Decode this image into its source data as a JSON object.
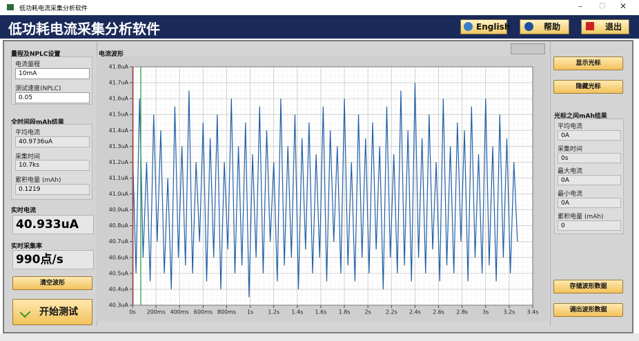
{
  "window": {
    "title": "低功耗电流采集分析软件"
  },
  "header": {
    "title": "低功耗电流采集分析软件",
    "english": "English",
    "help": "帮助",
    "exit": "退出"
  },
  "left": {
    "range_section": "量程及NPLC设置",
    "range_label": "电流量程",
    "range_value": "10mA",
    "nplc_label": "测试速度(NPLC)",
    "nplc_value": "0.05",
    "total_section": "全时间段mAh结果",
    "avg_label": "平均电流",
    "avg_value": "40.9736uA",
    "time_label": "采集时间",
    "time_value": "10.7ks",
    "charge_label": "累积电量 (mAh)",
    "charge_value": "0.1219",
    "realtime_label": "实时电流",
    "realtime_value": "40.933uA",
    "rate_label": "实时采集率",
    "rate_value": "990点/s",
    "clear_button": "清空波形",
    "start_button": "开始测试"
  },
  "right": {
    "show_cursor": "显示光标",
    "hide_cursor": "隐藏光标",
    "section": "光标之间mAh结果",
    "avg_label": "平均电流",
    "avg_value": "0A",
    "time_label": "采集时间",
    "time_value": "0s",
    "max_label": "最大电流",
    "max_value": "0A",
    "min_label": "最小电流",
    "min_value": "0A",
    "charge_label": "累积电量 (mAh)",
    "charge_value": "0",
    "save_button": "存储波形数据",
    "load_button": "调出波形数据"
  },
  "chart_data": {
    "type": "line",
    "title": "电流波形",
    "color": "#1f5fa6",
    "grid": true,
    "xlim": [
      0,
      3.4
    ],
    "ylim": [
      40.3,
      41.8
    ],
    "xticks": [
      {
        "value": 0,
        "label": "0s"
      },
      {
        "value": 0.2,
        "label": "200ms"
      },
      {
        "value": 0.4,
        "label": "400ms"
      },
      {
        "value": 0.6,
        "label": "600ms"
      },
      {
        "value": 0.8,
        "label": "800ms"
      },
      {
        "value": 1,
        "label": "1s"
      },
      {
        "value": 1.2,
        "label": "1.2s"
      },
      {
        "value": 1.4,
        "label": "1.4s"
      },
      {
        "value": 1.6,
        "label": "1.6s"
      },
      {
        "value": 1.8,
        "label": "1.8s"
      },
      {
        "value": 2,
        "label": "2s"
      },
      {
        "value": 2.2,
        "label": "2.2s"
      },
      {
        "value": 2.4,
        "label": "2.4s"
      },
      {
        "value": 2.6,
        "label": "2.6s"
      },
      {
        "value": 2.8,
        "label": "2.8s"
      },
      {
        "value": 3,
        "label": "3s"
      },
      {
        "value": 3.2,
        "label": "3.2s"
      },
      {
        "value": 3.4,
        "label": "3.4s"
      }
    ],
    "yticks": [
      {
        "value": 40.3,
        "label": "40.3uA"
      },
      {
        "value": 40.4,
        "label": "40.4uA"
      },
      {
        "value": 40.5,
        "label": "40.5uA"
      },
      {
        "value": 40.6,
        "label": "40.6uA"
      },
      {
        "value": 40.7,
        "label": "40.7uA"
      },
      {
        "value": 40.8,
        "label": "40.8uA"
      },
      {
        "value": 40.9,
        "label": "40.9uA"
      },
      {
        "value": 41,
        "label": "41.0uA"
      },
      {
        "value": 41.1,
        "label": "41.1uA"
      },
      {
        "value": 41.2,
        "label": "41.2uA"
      },
      {
        "value": 41.3,
        "label": "41.3uA"
      },
      {
        "value": 41.4,
        "label": "41.4uA"
      },
      {
        "value": 41.5,
        "label": "41.5uA"
      },
      {
        "value": 41.6,
        "label": "41.6uA"
      },
      {
        "value": 41.7,
        "label": "41.7uA"
      },
      {
        "value": 41.8,
        "label": "41.8uA"
      }
    ],
    "cursors": [
      {
        "x": 0.005,
        "color": "#c0282a"
      },
      {
        "x": 0.07,
        "color": "#1e9a3a"
      }
    ],
    "x": [
      0,
      0.03,
      0.06,
      0.09,
      0.12,
      0.15,
      0.18,
      0.21,
      0.24,
      0.27,
      0.3,
      0.33,
      0.36,
      0.39,
      0.42,
      0.45,
      0.48,
      0.51,
      0.54,
      0.57,
      0.6,
      0.63,
      0.66,
      0.69,
      0.72,
      0.75,
      0.78,
      0.81,
      0.84,
      0.87,
      0.9,
      0.93,
      0.96,
      0.99,
      1.02,
      1.05,
      1.08,
      1.11,
      1.14,
      1.17,
      1.2,
      1.23,
      1.26,
      1.29,
      1.32,
      1.35,
      1.38,
      1.41,
      1.44,
      1.47,
      1.5,
      1.53,
      1.56,
      1.59,
      1.62,
      1.65,
      1.68,
      1.71,
      1.74,
      1.77,
      1.8,
      1.83,
      1.86,
      1.89,
      1.92,
      1.95,
      1.98,
      2.01,
      2.04,
      2.07,
      2.1,
      2.13,
      2.16,
      2.19,
      2.22,
      2.25,
      2.28,
      2.31,
      2.34,
      2.37,
      2.4,
      2.43,
      2.46,
      2.49,
      2.52,
      2.55,
      2.58,
      2.61,
      2.64,
      2.67,
      2.7,
      2.73,
      2.76,
      2.79,
      2.82,
      2.85,
      2.88,
      2.91,
      2.94,
      2.97,
      3,
      3.03,
      3.06,
      3.09,
      3.12,
      3.15,
      3.18,
      3.21,
      3.24,
      3.27
    ],
    "values": [
      41.3,
      40.5,
      41.6,
      40.6,
      41.2,
      40.45,
      41.5,
      40.7,
      41.4,
      40.5,
      41.1,
      40.4,
      41.55,
      40.6,
      41.3,
      40.55,
      41.65,
      40.5,
      41.2,
      40.7,
      41.45,
      40.45,
      41.35,
      40.6,
      41.5,
      40.4,
      41.2,
      40.65,
      41.6,
      40.5,
      41.3,
      40.55,
      41.45,
      40.35,
      41.25,
      40.6,
      41.55,
      40.5,
      41.4,
      40.7,
      41.2,
      40.45,
      41.6,
      40.55,
      41.3,
      40.6,
      41.5,
      40.4,
      41.35,
      40.65,
      41.45,
      40.5,
      41.25,
      40.6,
      41.55,
      40.45,
      41.4,
      40.7,
      41.3,
      40.5,
      41.6,
      40.55,
      41.2,
      40.45,
      41.5,
      40.6,
      41.35,
      40.5,
      41.45,
      40.65,
      41.3,
      40.4,
      41.55,
      40.6,
      41.25,
      40.5,
      41.65,
      40.55,
      41.4,
      40.45,
      41.7,
      40.6,
      41.35,
      40.5,
      41.5,
      40.65,
      41.2,
      40.45,
      41.6,
      40.55,
      41.3,
      40.5,
      41.45,
      40.7,
      41.4,
      40.45,
      41.55,
      40.6,
      41.25,
      40.5,
      41.6,
      40.55,
      41.3,
      40.45,
      41.5,
      40.6,
      41.35,
      40.5,
      41.2,
      40.7
    ]
  }
}
